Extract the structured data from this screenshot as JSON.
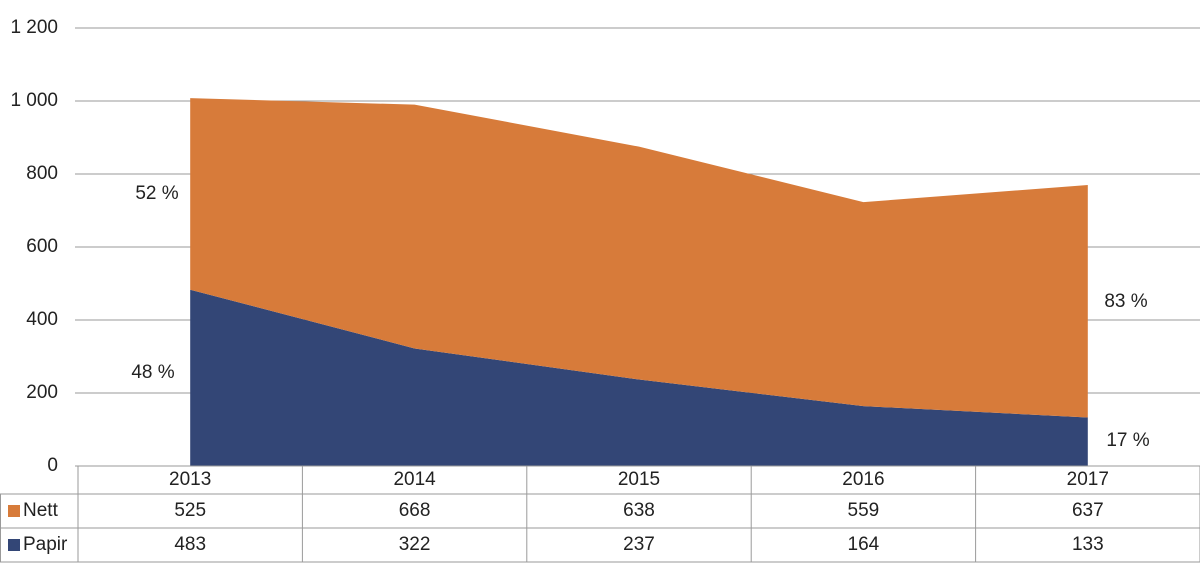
{
  "chart_data": {
    "type": "area",
    "stacked": true,
    "categories": [
      "2013",
      "2014",
      "2015",
      "2016",
      "2017"
    ],
    "series": [
      {
        "name": "Nett",
        "color": "#d77b3a",
        "values": [
          525,
          668,
          638,
          559,
          637
        ]
      },
      {
        "name": "Papir",
        "color": "#334676",
        "values": [
          483,
          322,
          237,
          164,
          133
        ]
      }
    ],
    "ylim": [
      0,
      1200
    ],
    "yticks": [
      0,
      200,
      400,
      600,
      800,
      {
        "value": 1000,
        "label": "1 000"
      },
      {
        "value": 1200,
        "label": "1 200"
      }
    ],
    "grid": true,
    "annotations": [
      "52 %",
      "48 %",
      "83 %",
      "17 %"
    ]
  }
}
